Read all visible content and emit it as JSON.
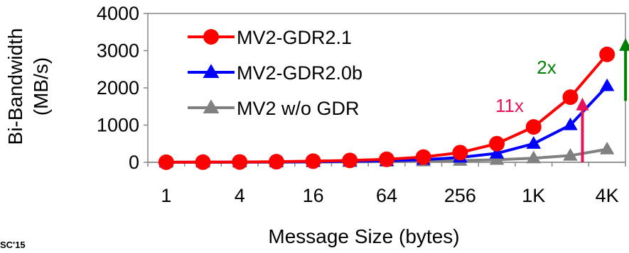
{
  "footer_text": "SC'15",
  "chart_data": {
    "type": "line",
    "xlabel": "Message Size (bytes)",
    "ylabel_lines": [
      "Bi-Bandwidth",
      "(MB/s)"
    ],
    "x": [
      "1",
      "2",
      "4",
      "8",
      "16",
      "32",
      "64",
      "128",
      "256",
      "512",
      "1K",
      "2K",
      "4K"
    ],
    "x_tick_labels": [
      "1",
      "4",
      "16",
      "64",
      "256",
      "1K",
      "4K"
    ],
    "y_ticks": [
      0,
      1000,
      2000,
      3000,
      4000
    ],
    "y_tick_labels": [
      "0",
      "1000",
      "2000",
      "3000",
      "4000"
    ],
    "ylim": [
      0,
      4000
    ],
    "grid": false,
    "legend_position": "top-left",
    "series": [
      {
        "name": "MV2-GDR2.1",
        "color": "#ff0000",
        "marker": "circle",
        "values": [
          2,
          4,
          8,
          16,
          30,
          50,
          80,
          140,
          260,
          500,
          950,
          1750,
          2900
        ]
      },
      {
        "name": "MV2-GDR2.0b",
        "color": "#0000ff",
        "marker": "triangle",
        "values": [
          1,
          2,
          4,
          8,
          15,
          25,
          40,
          70,
          130,
          240,
          500,
          1000,
          2050
        ]
      },
      {
        "name": "MV2 w/o GDR",
        "color": "#808080",
        "marker": "triangle",
        "values": [
          1,
          2,
          3,
          5,
          8,
          12,
          20,
          30,
          45,
          70,
          110,
          180,
          350
        ]
      }
    ],
    "annotations": [
      {
        "text": "11x",
        "color": "#e8115b",
        "arrow_x": "2K",
        "arrow_from": 0,
        "arrow_to": 1700
      },
      {
        "text": "2x",
        "color": "#008000",
        "arrow_x": "4K",
        "arrow_from": 1650,
        "arrow_to": 3300
      }
    ]
  }
}
